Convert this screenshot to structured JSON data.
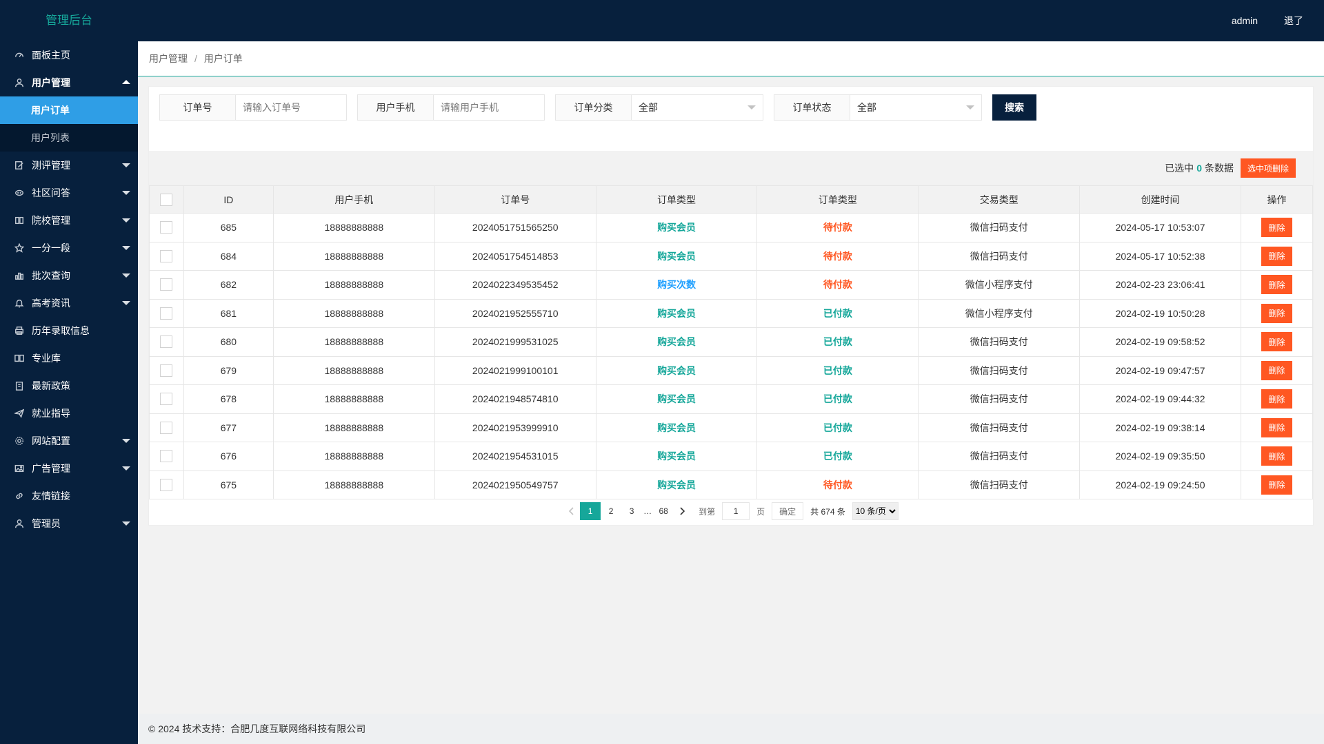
{
  "header": {
    "logo": "管理后台",
    "user": "admin",
    "logout": "退了"
  },
  "sidebar": {
    "items": [
      {
        "label": "面板主页",
        "icon": "dashboard-icon",
        "has_caret": false
      },
      {
        "label": "用户管理",
        "icon": "user-icon",
        "has_caret": true,
        "open": true,
        "children": [
          {
            "label": "用户订单",
            "active": true
          },
          {
            "label": "用户列表",
            "active": false
          }
        ]
      },
      {
        "label": "测评管理",
        "icon": "edit-icon",
        "has_caret": true
      },
      {
        "label": "社区问答",
        "icon": "chat-icon",
        "has_caret": true
      },
      {
        "label": "院校管理",
        "icon": "columns-icon",
        "has_caret": true
      },
      {
        "label": "一分一段",
        "icon": "star-icon",
        "has_caret": true
      },
      {
        "label": "批次查询",
        "icon": "chart-icon",
        "has_caret": true
      },
      {
        "label": "高考资讯",
        "icon": "bell-icon",
        "has_caret": true
      },
      {
        "label": "历年录取信息",
        "icon": "print-icon",
        "has_caret": false
      },
      {
        "label": "专业库",
        "icon": "book-icon",
        "has_caret": false
      },
      {
        "label": "最新政策",
        "icon": "clipboard-icon",
        "has_caret": false
      },
      {
        "label": "就业指导",
        "icon": "send-icon",
        "has_caret": false
      },
      {
        "label": "网站配置",
        "icon": "gear-icon",
        "has_caret": true
      },
      {
        "label": "广告管理",
        "icon": "image-icon",
        "has_caret": true
      },
      {
        "label": "友情链接",
        "icon": "link-icon",
        "has_caret": false
      },
      {
        "label": "管理员",
        "icon": "admin-icon",
        "has_caret": true
      }
    ]
  },
  "breadcrumb": {
    "parent": "用户管理",
    "separator": "/",
    "current": "用户订单"
  },
  "filters": {
    "order_no": {
      "label": "订单号",
      "placeholder": "请输入订单号"
    },
    "phone": {
      "label": "用户手机",
      "placeholder": "请输用户手机"
    },
    "category": {
      "label": "订单分类",
      "value": "全部"
    },
    "status": {
      "label": "订单状态",
      "value": "全部"
    },
    "search_label": "搜索"
  },
  "toolbar": {
    "prefix": "已选中",
    "count": "0",
    "suffix": "条数据",
    "batch_delete": "选中项删除"
  },
  "table": {
    "columns": [
      "ID",
      "用户手机",
      "订单号",
      "订单类型",
      "订单类型",
      "交易类型",
      "创建时间",
      "操作"
    ],
    "delete_label": "删除",
    "rows": [
      {
        "id": "685",
        "phone": "18888888888",
        "order_no": "2024051751565250",
        "type": "购买会员",
        "type_color": "green",
        "status": "待付款",
        "status_color": "red",
        "pay": "微信扫码支付",
        "time": "2024-05-17 10:53:07"
      },
      {
        "id": "684",
        "phone": "18888888888",
        "order_no": "2024051754514853",
        "type": "购买会员",
        "type_color": "green",
        "status": "待付款",
        "status_color": "red",
        "pay": "微信扫码支付",
        "time": "2024-05-17 10:52:38"
      },
      {
        "id": "682",
        "phone": "18888888888",
        "order_no": "2024022349535452",
        "type": "购买次数",
        "type_color": "blue",
        "status": "待付款",
        "status_color": "red",
        "pay": "微信小程序支付",
        "time": "2024-02-23 23:06:41"
      },
      {
        "id": "681",
        "phone": "18888888888",
        "order_no": "2024021952555710",
        "type": "购买会员",
        "type_color": "green",
        "status": "已付款",
        "status_color": "green",
        "pay": "微信小程序支付",
        "time": "2024-02-19 10:50:28"
      },
      {
        "id": "680",
        "phone": "18888888888",
        "order_no": "2024021999531025",
        "type": "购买会员",
        "type_color": "green",
        "status": "已付款",
        "status_color": "green",
        "pay": "微信扫码支付",
        "time": "2024-02-19 09:58:52"
      },
      {
        "id": "679",
        "phone": "18888888888",
        "order_no": "2024021999100101",
        "type": "购买会员",
        "type_color": "green",
        "status": "已付款",
        "status_color": "green",
        "pay": "微信扫码支付",
        "time": "2024-02-19 09:47:57"
      },
      {
        "id": "678",
        "phone": "18888888888",
        "order_no": "2024021948574810",
        "type": "购买会员",
        "type_color": "green",
        "status": "已付款",
        "status_color": "green",
        "pay": "微信扫码支付",
        "time": "2024-02-19 09:44:32"
      },
      {
        "id": "677",
        "phone": "18888888888",
        "order_no": "2024021953999910",
        "type": "购买会员",
        "type_color": "green",
        "status": "已付款",
        "status_color": "green",
        "pay": "微信扫码支付",
        "time": "2024-02-19 09:38:14"
      },
      {
        "id": "676",
        "phone": "18888888888",
        "order_no": "2024021954531015",
        "type": "购买会员",
        "type_color": "green",
        "status": "已付款",
        "status_color": "green",
        "pay": "微信扫码支付",
        "time": "2024-02-19 09:35:50"
      },
      {
        "id": "675",
        "phone": "18888888888",
        "order_no": "2024021950549757",
        "type": "购买会员",
        "type_color": "green",
        "status": "待付款",
        "status_color": "red",
        "pay": "微信扫码支付",
        "time": "2024-02-19 09:24:50"
      }
    ]
  },
  "pagination": {
    "pages": [
      "1",
      "2",
      "3"
    ],
    "current": "1",
    "ellipsis": "…",
    "last": "68",
    "goto_prefix": "到第",
    "goto_value": "1",
    "goto_suffix": "页",
    "confirm": "确定",
    "total": "共 674 条",
    "page_size": "10 条/页"
  },
  "footer": {
    "text": "© 2024 技术支持：合肥几度互联网络科技有限公司"
  },
  "colors": {
    "nav_bg": "#07203d",
    "accent": "#16a79a",
    "active_blue": "#2f9ee6",
    "danger": "#ff5722",
    "link_blue": "#1e9fff"
  }
}
